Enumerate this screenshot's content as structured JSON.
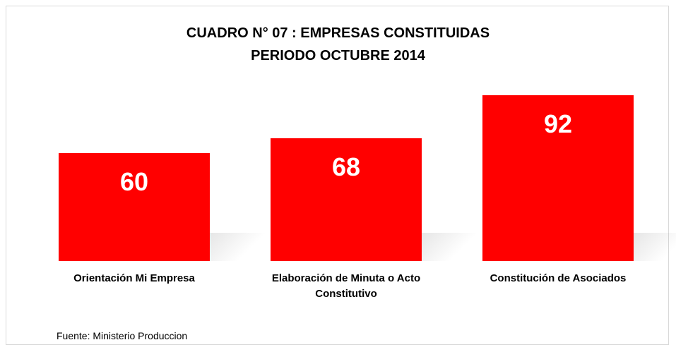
{
  "chart_data": {
    "type": "bar",
    "title": [
      "CUADRO N° 07 : EMPRESAS CONSTITUIDAS",
      "PERIODO OCTUBRE 2014"
    ],
    "categories": [
      "Orientación Mi Empresa",
      "Elaboración de Minuta o Acto Constitutivo",
      "Constitución de Asociados"
    ],
    "values": [
      60,
      68,
      92
    ],
    "color": "#ff0000",
    "source": "Fuente: Ministerio Produccion"
  }
}
